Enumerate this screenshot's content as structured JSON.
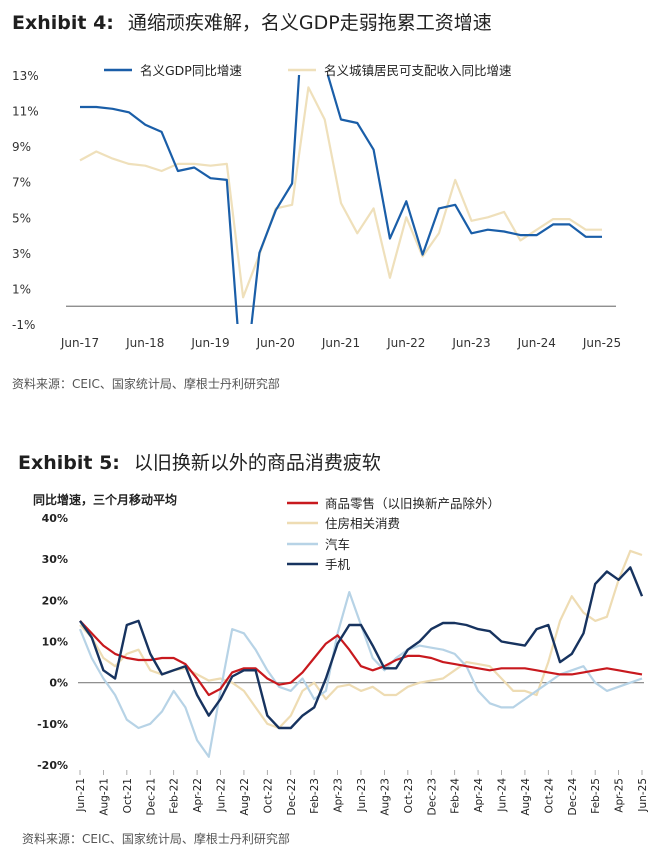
{
  "exhibit4": {
    "label": "Exhibit 4:",
    "title": "通缩顽疾难解，名义GDP走弱拖累工资增速",
    "source": "资料来源：CEIC、国家统计局、摩根士丹利研究部"
  },
  "exhibit5": {
    "label": "Exhibit 5:",
    "title": "以旧换新以外的商品消费疲软",
    "source": "资料来源：CEIC、国家统计局、摩根士丹利研究部"
  },
  "colors": {
    "gdp": "#1a5ea8",
    "income": "#efe0bb",
    "retail": "#c8191e",
    "housing": "#eedcb3",
    "auto": "#b7d3e6",
    "phone": "#17335f",
    "zero": "#808080"
  },
  "chart_data": [
    {
      "type": "line",
      "title": "",
      "xlabel": "",
      "ylabel": "",
      "ylim": [
        -1,
        13
      ],
      "y_ticks": [
        "13%",
        "11%",
        "9%",
        "7%",
        "5%",
        "3%",
        "1%",
        "-1%"
      ],
      "y_tick_values": [
        13,
        11,
        9,
        7,
        5,
        3,
        1,
        -1
      ],
      "x_ticks": [
        "Jun-17",
        "Jun-18",
        "Jun-19",
        "Jun-20",
        "Jun-21",
        "Jun-22",
        "Jun-23",
        "Jun-24",
        "Jun-25"
      ],
      "x_tick_values": [
        0,
        4,
        8,
        12,
        16,
        20,
        24,
        28,
        32
      ],
      "legend_position": "top",
      "grid": false,
      "series": [
        {
          "name": "名义GDP同比增速",
          "color_key": "gdp",
          "x": [
            0,
            1,
            2,
            3,
            4,
            5,
            6,
            7,
            8,
            9,
            10,
            11,
            12,
            13,
            14,
            15,
            16,
            17,
            18,
            19,
            20,
            21,
            22,
            23,
            24,
            25,
            26,
            27,
            28,
            29,
            30,
            31,
            32
          ],
          "y": [
            11.2,
            11.2,
            11.1,
            10.9,
            10.2,
            9.8,
            7.6,
            7.8,
            7.2,
            7.1,
            -5.3,
            3.0,
            5.4,
            6.9,
            21.2,
            13.6,
            10.5,
            10.3,
            8.8,
            3.8,
            5.9,
            2.9,
            5.5,
            5.7,
            4.1,
            4.3,
            4.2,
            4.0,
            4.0,
            4.6,
            4.6,
            3.9,
            3.9
          ]
        },
        {
          "name": "名义城镇居民可支配收入同比增速",
          "color_key": "income",
          "x": [
            0,
            1,
            2,
            3,
            4,
            5,
            6,
            7,
            8,
            9,
            10,
            11,
            12,
            13,
            14,
            15,
            16,
            17,
            18,
            19,
            20,
            21,
            22,
            23,
            24,
            25,
            26,
            27,
            28,
            29,
            30,
            31,
            32
          ],
          "y": [
            8.2,
            8.7,
            8.3,
            8.0,
            7.9,
            7.6,
            8.0,
            8.0,
            7.9,
            8.0,
            0.5,
            2.9,
            5.5,
            5.7,
            12.3,
            10.5,
            5.8,
            4.1,
            5.5,
            1.6,
            5.0,
            2.8,
            4.1,
            7.1,
            4.8,
            5.0,
            5.3,
            3.7,
            4.3,
            4.9,
            4.9,
            4.3,
            4.3
          ]
        }
      ]
    },
    {
      "type": "line",
      "title": "同比增速，三个月移动平均",
      "xlabel": "",
      "ylabel": "",
      "ylim": [
        -20,
        40
      ],
      "y_ticks": [
        "40%",
        "30%",
        "20%",
        "10%",
        "0%",
        "-10%",
        "-20%"
      ],
      "y_tick_values": [
        40,
        30,
        20,
        10,
        0,
        -10,
        -20
      ],
      "x_ticks": [
        "Jun-21",
        "Aug-21",
        "Oct-21",
        "Dec-21",
        "Feb-22",
        "Apr-22",
        "Jun-22",
        "Aug-22",
        "Oct-22",
        "Dec-22",
        "Feb-23",
        "Apr-23",
        "Jun-23",
        "Aug-23",
        "Oct-23",
        "Dec-23",
        "Feb-24",
        "Apr-24",
        "Jun-24",
        "Aug-24",
        "Oct-24",
        "Dec-24",
        "Feb-25",
        "Apr-25",
        "Jun-25"
      ],
      "x_tick_values": [
        0,
        2,
        4,
        6,
        8,
        10,
        12,
        14,
        16,
        18,
        20,
        22,
        24,
        26,
        28,
        30,
        32,
        34,
        36,
        38,
        40,
        42,
        44,
        46,
        48
      ],
      "legend_position": "top-right",
      "grid": false,
      "series": [
        {
          "name": "商品零售（以旧换新产品除外）",
          "color_key": "retail",
          "x": [
            0,
            1,
            2,
            3,
            4,
            5,
            6,
            7,
            8,
            9,
            10,
            11,
            12,
            13,
            14,
            15,
            16,
            17,
            18,
            19,
            20,
            21,
            22,
            23,
            24,
            25,
            26,
            27,
            28,
            29,
            30,
            31,
            32,
            33,
            34,
            35,
            36,
            37,
            38,
            39,
            40,
            41,
            42,
            43,
            44,
            45,
            46,
            47,
            48
          ],
          "y": [
            15,
            12,
            9,
            7,
            6,
            5.5,
            5.5,
            6,
            6,
            4.5,
            1,
            -3,
            -1.5,
            2.5,
            3.5,
            3.5,
            1,
            -0.5,
            0,
            2.5,
            6,
            9.5,
            11.5,
            8,
            4,
            3,
            4,
            5.5,
            6.5,
            6.5,
            6,
            5,
            4.5,
            4,
            3.5,
            3,
            3.5,
            3.5,
            3.5,
            3,
            2.5,
            2,
            2,
            2.5,
            3,
            3.5,
            3,
            2.5,
            2
          ]
        },
        {
          "name": "住房相关消费",
          "color_key": "housing",
          "x": [
            0,
            1,
            2,
            3,
            4,
            5,
            6,
            7,
            8,
            9,
            10,
            11,
            12,
            13,
            14,
            15,
            16,
            17,
            18,
            19,
            20,
            21,
            22,
            23,
            24,
            25,
            26,
            27,
            28,
            29,
            30,
            31,
            32,
            33,
            34,
            35,
            36,
            37,
            38,
            39,
            40,
            41,
            42,
            43,
            44,
            45,
            46,
            47,
            48
          ],
          "y": [
            14,
            11,
            6,
            4,
            7,
            8,
            3,
            2,
            3,
            3.5,
            2,
            0.5,
            1,
            0,
            -2,
            -6,
            -10,
            -11,
            -8,
            -2,
            0,
            -4,
            -1,
            -0.5,
            -2,
            -1,
            -3,
            -3,
            -1,
            0,
            0.5,
            1,
            3,
            5,
            4.5,
            4,
            1,
            -2,
            -2,
            -3,
            5,
            15,
            21,
            17,
            15,
            16,
            25,
            32,
            31
          ]
        },
        {
          "name": "汽车",
          "color_key": "auto",
          "x": [
            0,
            1,
            2,
            3,
            4,
            5,
            6,
            7,
            8,
            9,
            10,
            11,
            12,
            13,
            14,
            15,
            16,
            17,
            18,
            19,
            20,
            21,
            22,
            23,
            24,
            25,
            26,
            27,
            28,
            29,
            30,
            31,
            32,
            33,
            34,
            35,
            36,
            37,
            38,
            39,
            40,
            41,
            42,
            43,
            44,
            45,
            46,
            47,
            48
          ],
          "y": [
            13,
            6,
            1,
            -3,
            -9,
            -11,
            -10,
            -7,
            -2,
            -6,
            -14,
            -18,
            -2,
            13,
            12,
            8,
            3,
            -1,
            -2,
            1,
            -4,
            -2,
            12,
            22,
            14,
            6,
            3,
            6,
            8,
            9,
            8.5,
            8,
            7,
            4,
            -2,
            -5,
            -6,
            -6,
            -4,
            -2,
            0,
            2,
            3,
            4,
            0,
            -2,
            -1,
            0,
            1
          ]
        },
        {
          "name": "手机",
          "color_key": "phone",
          "x": [
            0,
            1,
            2,
            3,
            4,
            5,
            6,
            7,
            8,
            9,
            10,
            11,
            12,
            13,
            14,
            15,
            16,
            17,
            18,
            19,
            20,
            21,
            22,
            23,
            24,
            25,
            26,
            27,
            28,
            29,
            30,
            31,
            32,
            33,
            34,
            35,
            36,
            37,
            38,
            39,
            40,
            41,
            42,
            43,
            44,
            45,
            46,
            47,
            48
          ],
          "y": [
            15,
            11,
            3,
            1,
            14,
            15,
            7,
            2,
            3,
            4,
            -3,
            -8,
            -4,
            1.5,
            3,
            3,
            -8,
            -11,
            -11,
            -8,
            -6,
            1,
            9.5,
            14,
            14,
            9,
            3.5,
            3.5,
            8,
            10,
            13,
            14.5,
            14.5,
            14,
            13,
            12.5,
            10,
            9.5,
            9,
            13,
            14,
            5,
            7,
            12,
            24,
            27,
            25,
            28,
            21
          ]
        }
      ]
    }
  ]
}
